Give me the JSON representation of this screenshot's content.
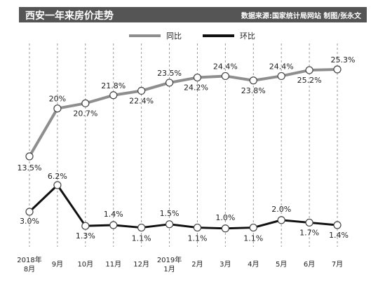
{
  "header": {
    "title": "西安一年来房价走势",
    "source": "数据来源:国家统计局网站    制图/张永文"
  },
  "legend": [
    {
      "name": "同比",
      "color": "#8e8e8e"
    },
    {
      "name": "环比",
      "color": "#111111"
    }
  ],
  "chart_data": {
    "type": "line",
    "x": [
      "2018年8月",
      "9月",
      "10月",
      "11月",
      "12月",
      "2019年1月",
      "2月",
      "3月",
      "4月",
      "5月",
      "6月",
      "7月"
    ],
    "xtick_lines": [
      [
        "2018年",
        "8月"
      ],
      [
        "9月"
      ],
      [
        "10月"
      ],
      [
        "11月"
      ],
      [
        "12月"
      ],
      [
        "2019年",
        "1月"
      ],
      [
        "2月"
      ],
      [
        "3月"
      ],
      [
        "4月"
      ],
      [
        "5月"
      ],
      [
        "6月"
      ],
      [
        "7月"
      ]
    ],
    "series": [
      {
        "name": "同比",
        "values": [
          13.5,
          20,
          20.7,
          21.8,
          22.4,
          23.5,
          24.2,
          24.4,
          23.8,
          24.4,
          25.2,
          25.3
        ],
        "labels": [
          "13.5%",
          "20%",
          "20.7%",
          "21.8%",
          "22.4%",
          "23.5%",
          "24.2%",
          "24.4%",
          "23.8%",
          "24.4%",
          "25.2%",
          "25.3%"
        ],
        "color": "#8e8e8e"
      },
      {
        "name": "环比",
        "values": [
          3.0,
          6.2,
          1.3,
          1.4,
          1.1,
          1.5,
          1.1,
          1.0,
          1.1,
          2.0,
          1.7,
          1.4
        ],
        "labels": [
          "3.0%",
          "6.2%",
          "1.3%",
          "1.4%",
          "1.1%",
          "1.5%",
          "1.1%",
          "1.0%",
          "1.1%",
          "2.0%",
          "1.7%",
          "1.4%"
        ],
        "color": "#111111"
      }
    ],
    "grid": "vertical-dashed",
    "legend_position": "top"
  }
}
